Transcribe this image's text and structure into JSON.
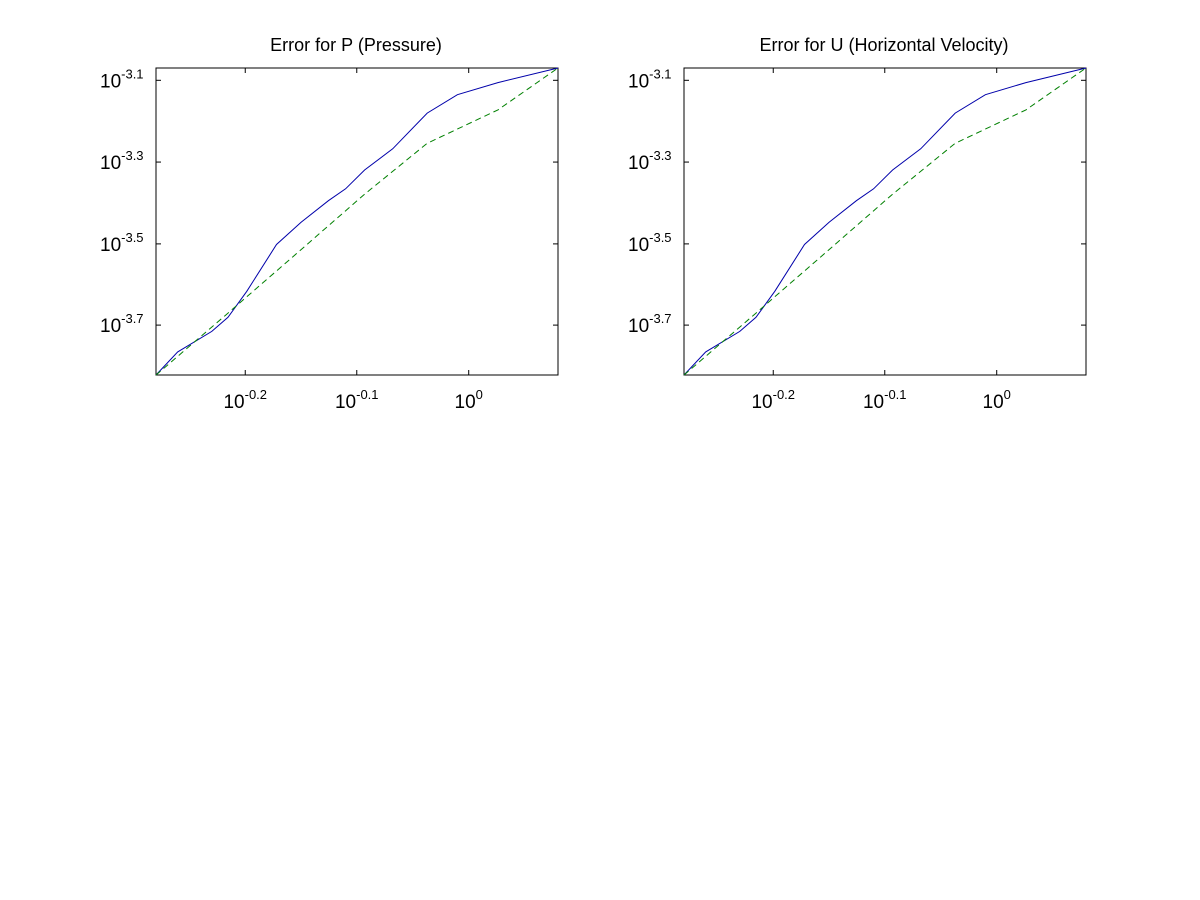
{
  "chart_data": [
    {
      "type": "line",
      "title": "Error for P (Pressure)",
      "xlabel": "",
      "ylabel": "",
      "xscale": "log",
      "yscale": "log",
      "xlim": [
        0.525,
        1.202
      ],
      "ylim": [
        0.000151,
        0.000851
      ],
      "grid": false,
      "xticks": [
        {
          "value": 0.631,
          "base": "10",
          "exponent": "-0.2"
        },
        {
          "value": 0.794,
          "base": "10",
          "exponent": "-0.1"
        },
        {
          "value": 1.0,
          "base": "10",
          "exponent": "0"
        }
      ],
      "yticks": [
        {
          "value": 0.000794,
          "base": "10",
          "exponent": "-3.1"
        },
        {
          "value": 0.000501,
          "base": "10",
          "exponent": "-3.3"
        },
        {
          "value": 0.000316,
          "base": "10",
          "exponent": "-3.5"
        },
        {
          "value": 0.0002,
          "base": "10",
          "exponent": "-3.7"
        }
      ],
      "series": [
        {
          "style": "solid",
          "color": "#0000aa",
          "x": [
            0.525,
            0.549,
            0.589,
            0.609,
            0.633,
            0.673,
            0.708,
            0.749,
            0.776,
            0.807,
            0.855,
            0.918,
            0.977,
            1.062,
            1.202
          ],
          "y": [
            0.000151,
            0.000172,
            0.000193,
            0.000209,
            0.000242,
            0.000315,
            0.000357,
            0.000403,
            0.000431,
            0.000479,
            0.00054,
            0.00066,
            0.000732,
            0.000784,
            0.000851
          ]
        },
        {
          "style": "dashed",
          "color": "#008000",
          "x": [
            0.525,
            0.609,
            0.708,
            0.807,
            0.918,
            1.062,
            1.202
          ],
          "y": [
            0.000151,
            0.000214,
            0.000306,
            0.000418,
            0.000557,
            0.000672,
            0.000851
          ]
        }
      ]
    },
    {
      "type": "line",
      "title": "Error for U (Horizontal Velocity)",
      "xlabel": "",
      "ylabel": "",
      "xscale": "log",
      "yscale": "log",
      "xlim": [
        0.525,
        1.202
      ],
      "ylim": [
        0.000151,
        0.000851
      ],
      "grid": false,
      "xticks": [
        {
          "value": 0.631,
          "base": "10",
          "exponent": "-0.2"
        },
        {
          "value": 0.794,
          "base": "10",
          "exponent": "-0.1"
        },
        {
          "value": 1.0,
          "base": "10",
          "exponent": "0"
        }
      ],
      "yticks": [
        {
          "value": 0.000794,
          "base": "10",
          "exponent": "-3.1"
        },
        {
          "value": 0.000501,
          "base": "10",
          "exponent": "-3.3"
        },
        {
          "value": 0.000316,
          "base": "10",
          "exponent": "-3.5"
        },
        {
          "value": 0.0002,
          "base": "10",
          "exponent": "-3.7"
        }
      ],
      "series": [
        {
          "style": "solid",
          "color": "#0000aa",
          "x": [
            0.525,
            0.549,
            0.589,
            0.609,
            0.633,
            0.673,
            0.708,
            0.749,
            0.776,
            0.807,
            0.855,
            0.918,
            0.977,
            1.062,
            1.202
          ],
          "y": [
            0.000151,
            0.000172,
            0.000193,
            0.000209,
            0.000242,
            0.000315,
            0.000357,
            0.000403,
            0.000431,
            0.000479,
            0.00054,
            0.00066,
            0.000732,
            0.000784,
            0.000851
          ]
        },
        {
          "style": "dashed",
          "color": "#008000",
          "x": [
            0.525,
            0.609,
            0.708,
            0.807,
            0.918,
            1.062,
            1.202
          ],
          "y": [
            0.000151,
            0.000214,
            0.000306,
            0.000418,
            0.000557,
            0.000672,
            0.000851
          ]
        }
      ]
    }
  ]
}
